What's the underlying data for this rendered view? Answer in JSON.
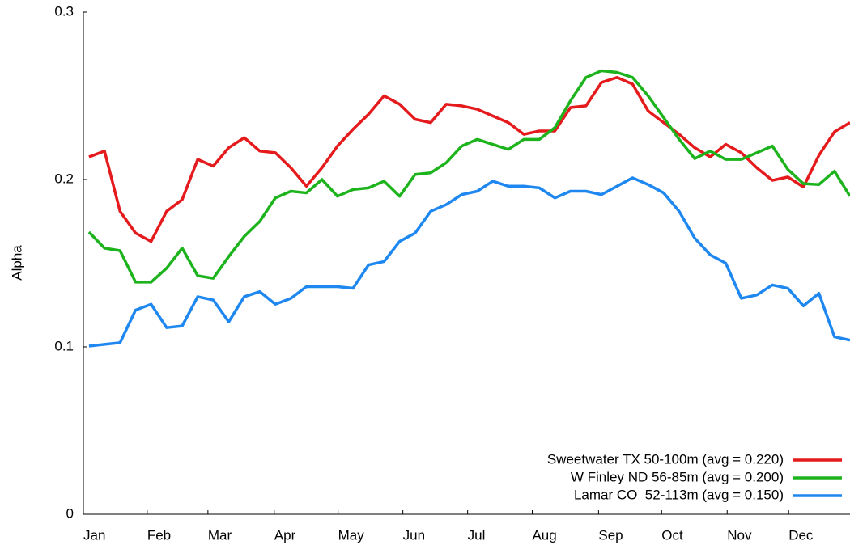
{
  "chart_data": {
    "type": "line",
    "y_label": "Alpha",
    "x": [
      0,
      1,
      2,
      3,
      4,
      5,
      6,
      7,
      8,
      9,
      10,
      11,
      12,
      13,
      14,
      15,
      16,
      17,
      18,
      19,
      20,
      21,
      22,
      23,
      24,
      25,
      26,
      27,
      28,
      29,
      30,
      31,
      32,
      33,
      34,
      35,
      36,
      37,
      38,
      39,
      40,
      41,
      42,
      43,
      44,
      45,
      46,
      47,
      48,
      49
    ],
    "xlim": [
      -0.36,
      49
    ],
    "xticks": [
      {
        "value": -0.36,
        "label": "Jan"
      },
      {
        "value": 3.75,
        "label": "Feb"
      },
      {
        "value": 7.66,
        "label": "Mar"
      },
      {
        "value": 11.93,
        "label": "Apr"
      },
      {
        "value": 16.04,
        "label": "May"
      },
      {
        "value": 20.21,
        "label": "Jun"
      },
      {
        "value": 24.38,
        "label": "Jul"
      },
      {
        "value": 28.54,
        "label": "Aug"
      },
      {
        "value": 32.81,
        "label": "Sep"
      },
      {
        "value": 36.87,
        "label": "Oct"
      },
      {
        "value": 41.09,
        "label": "Nov"
      },
      {
        "value": 45.05,
        "label": "Dec"
      }
    ],
    "ylim": [
      0,
      0.3
    ],
    "yticks": [
      0,
      0.1,
      0.2,
      0.3
    ],
    "grid": false,
    "legend": "bottom-right",
    "series": [
      {
        "name": "Sweetwater TX 50-100m (avg = 0.220)",
        "color": "#e41a1c",
        "values": [
          0.2135,
          0.217,
          0.181,
          0.168,
          0.163,
          0.181,
          0.188,
          0.212,
          0.208,
          0.219,
          0.225,
          0.217,
          0.216,
          0.207,
          0.196,
          0.207,
          0.22,
          0.23,
          0.239,
          0.25,
          0.245,
          0.236,
          0.234,
          0.245,
          0.244,
          0.242,
          0.238,
          0.234,
          0.227,
          0.229,
          0.229,
          0.243,
          0.244,
          0.258,
          0.261,
          0.257,
          0.241,
          0.234,
          0.227,
          0.219,
          0.2135,
          0.221,
          0.216,
          0.207,
          0.1995,
          0.2015,
          0.1955,
          0.2145,
          0.2285,
          0.234
        ]
      },
      {
        "name": "W Finley ND 56-85m (avg = 0.200)",
        "color": "#1db31d",
        "values": [
          0.1686,
          0.159,
          0.1575,
          0.1387,
          0.1387,
          0.147,
          0.159,
          0.1425,
          0.141,
          0.154,
          0.166,
          0.175,
          0.189,
          0.193,
          0.192,
          0.2,
          0.19,
          0.194,
          0.195,
          0.199,
          0.19,
          0.203,
          0.204,
          0.21,
          0.22,
          0.224,
          0.221,
          0.218,
          0.224,
          0.224,
          0.231,
          0.247,
          0.261,
          0.265,
          0.264,
          0.261,
          0.25,
          0.237,
          0.224,
          0.2125,
          0.217,
          0.212,
          0.212,
          0.216,
          0.22,
          0.206,
          0.1975,
          0.197,
          0.205,
          0.19
        ]
      },
      {
        "name": "Lamar CO  52-113m (avg = 0.150)",
        "color": "#1e88f0",
        "values": [
          0.1005,
          0.1015,
          0.1025,
          0.122,
          0.1255,
          0.1115,
          0.1125,
          0.13,
          0.128,
          0.115,
          0.13,
          0.133,
          0.1255,
          0.129,
          0.136,
          0.136,
          0.136,
          0.135,
          0.149,
          0.151,
          0.163,
          0.168,
          0.181,
          0.185,
          0.191,
          0.193,
          0.199,
          0.196,
          0.196,
          0.195,
          0.189,
          0.193,
          0.193,
          0.191,
          0.196,
          0.201,
          0.197,
          0.192,
          0.181,
          0.165,
          0.155,
          0.15,
          0.129,
          0.131,
          0.137,
          0.135,
          0.1245,
          0.132,
          0.106,
          0.104
        ]
      }
    ]
  }
}
